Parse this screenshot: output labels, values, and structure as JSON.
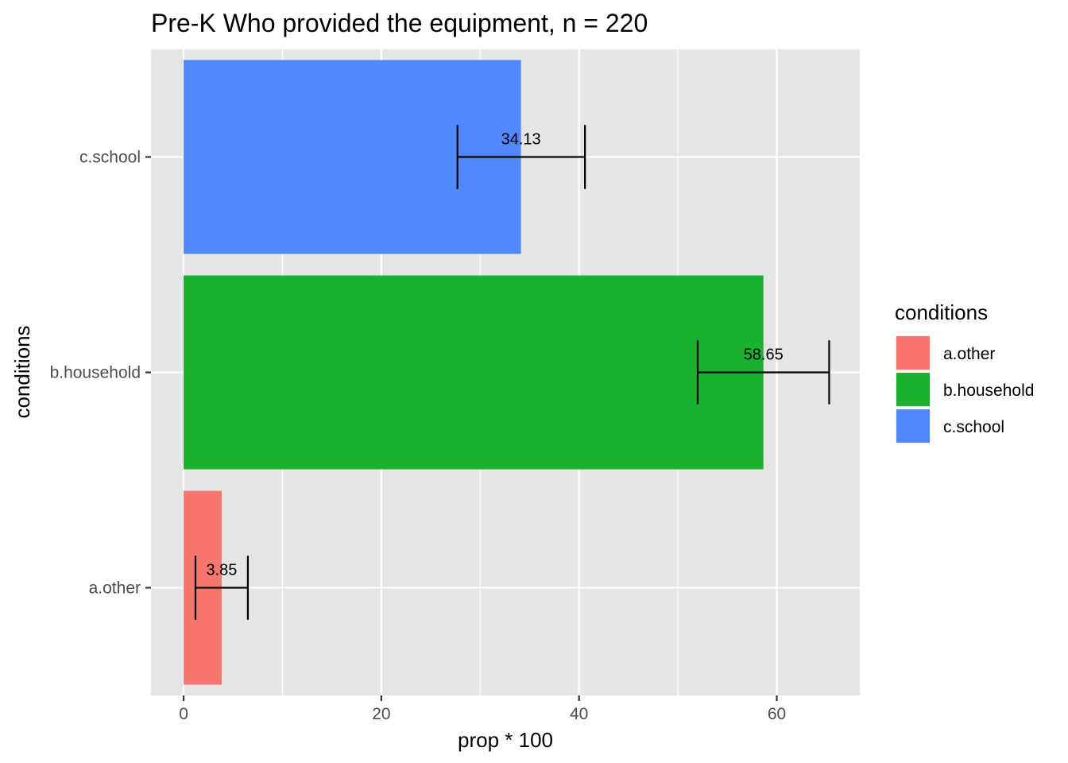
{
  "chart_data": {
    "type": "bar",
    "orientation": "horizontal",
    "title": "Pre-K Who provided the equipment, n = 220",
    "xlabel": "prop * 100",
    "ylabel": "conditions",
    "xlim": [
      -3.3,
      68.4
    ],
    "xticks": [
      0,
      20,
      40,
      60
    ],
    "grid": true,
    "categories": [
      "a.other",
      "b.household",
      "c.school"
    ],
    "values": [
      3.85,
      58.65,
      34.13
    ],
    "value_labels": [
      "3.85",
      "58.65",
      "34.13"
    ],
    "error_low": [
      1.2,
      52.0,
      27.7
    ],
    "error_high": [
      6.5,
      65.3,
      40.6
    ],
    "colors": [
      "#F8766D",
      "#19B22E",
      "#5187FF"
    ],
    "legend": {
      "title": "conditions",
      "position": "right",
      "entries": [
        "a.other",
        "b.household",
        "c.school"
      ]
    },
    "theme": {
      "panel_background": "#E5E5E5",
      "grid_color": "#FFFFFF",
      "axis_text_color": "#4D4D4D"
    }
  }
}
